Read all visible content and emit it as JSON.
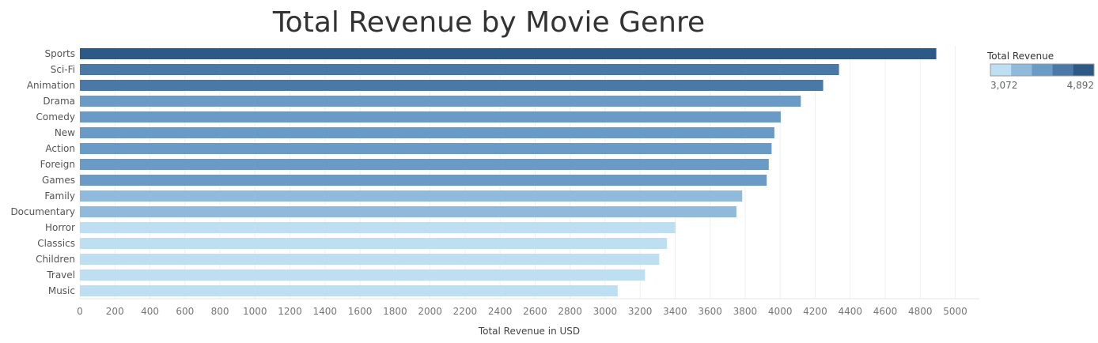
{
  "chart_data": {
    "type": "bar",
    "orientation": "horizontal",
    "title": "Total Revenue by Movie Genre",
    "xlabel": "Total Revenue in USD",
    "ylabel": "",
    "categories": [
      "Sports",
      "Sci-Fi",
      "Animation",
      "Drama",
      "Comedy",
      "New",
      "Action",
      "Foreign",
      "Games",
      "Family",
      "Documentary",
      "Horror",
      "Classics",
      "Children",
      "Travel",
      "Music"
    ],
    "values": [
      4892,
      4336,
      4246,
      4118,
      4003,
      3967,
      3951,
      3935,
      3923,
      3783,
      3750,
      3402,
      3354,
      3309,
      3228,
      3072
    ],
    "xlim": [
      0,
      5100
    ],
    "xticks": [
      "0",
      "200",
      "400",
      "600",
      "800",
      "1000",
      "1200",
      "1400",
      "1600",
      "1800",
      "2000",
      "2200",
      "2400",
      "2600",
      "2800",
      "3000",
      "3200",
      "3400",
      "3600",
      "3800",
      "4000",
      "4200",
      "4400",
      "4600",
      "4800",
      "5000"
    ],
    "grid": "vertical",
    "legend": {
      "title": "Total Revenue",
      "min_label": "3,072",
      "max_label": "4,892",
      "placement": "top-right",
      "colors": [
        "#bddff1",
        "#8fbadc",
        "#6a9bc6",
        "#4a79a8",
        "#2c5985"
      ]
    }
  }
}
